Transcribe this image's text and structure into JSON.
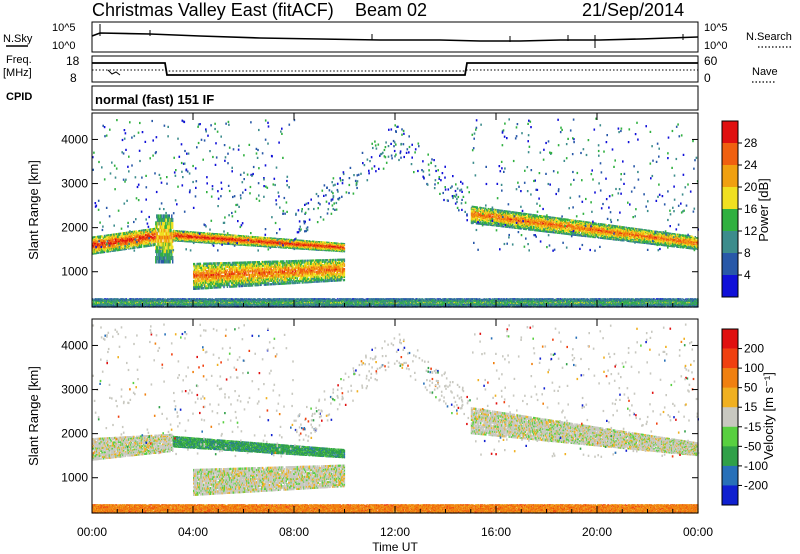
{
  "header": {
    "title": "Christmas Valley East (fitACF)",
    "beam": "Beam 02",
    "date": "21/Sep/2014"
  },
  "top_panels": {
    "nsky": {
      "label": "N.Sky",
      "ticks": [
        "10^5",
        "10^0"
      ],
      "right_label": "N.Search"
    },
    "freq": {
      "label_line1": "Freq.",
      "label_line2": "[MHz]",
      "ticks": [
        "18",
        "8"
      ],
      "right_ticks": [
        "60",
        "0"
      ],
      "right_label": "Nave"
    },
    "cpid": {
      "label": "CPID",
      "mode": "normal (fast) 151 IF"
    }
  },
  "chart_data": [
    {
      "type": "heatmap",
      "panel": "power",
      "ylabel": "Slant Range [km]",
      "yticks": [
        1000,
        2000,
        3000,
        4000
      ],
      "ylim": [
        200,
        4600
      ],
      "xlim": [
        0,
        24
      ],
      "colorbar": {
        "label": "Power [dB]",
        "ticks": [
          "4",
          "8",
          "12",
          "16",
          "20",
          "24",
          "28"
        ],
        "colors": [
          "#1010d8",
          "#2858a8",
          "#3c8c8c",
          "#30b040",
          "#f0e020",
          "#f0a010",
          "#f06010",
          "#e01010"
        ]
      },
      "bands": [
        {
          "t": [
            0.0,
            2.5
          ],
          "r0": [
            1400,
            1600
          ],
          "r1": [
            1800,
            2000
          ],
          "level": 7
        },
        {
          "t": [
            2.5,
            3.2
          ],
          "r0": [
            1200,
            1200
          ],
          "r1": [
            2300,
            2300
          ],
          "level": 5
        },
        {
          "t": [
            3.2,
            10.0
          ],
          "r0": [
            1700,
            1450
          ],
          "r1": [
            1950,
            1650
          ],
          "level": 7
        },
        {
          "t": [
            4.0,
            10.0
          ],
          "r0": [
            600,
            800
          ],
          "r1": [
            1200,
            1300
          ],
          "level": 6
        },
        {
          "t": [
            15.0,
            24.0
          ],
          "r0": [
            2100,
            1500
          ],
          "r1": [
            2500,
            1800
          ],
          "level": 6
        },
        {
          "t": [
            0.0,
            24.0
          ],
          "r0": [
            200,
            200
          ],
          "r1": [
            400,
            400
          ],
          "level": 3
        }
      ]
    },
    {
      "type": "heatmap",
      "panel": "velocity",
      "xlabel": "Time UT",
      "ylabel": "Slant Range [km]",
      "yticks": [
        1000,
        2000,
        3000,
        4000
      ],
      "ylim": [
        200,
        4600
      ],
      "xlim": [
        0,
        24
      ],
      "xticks": [
        "00:00",
        "04:00",
        "08:00",
        "12:00",
        "16:00",
        "20:00",
        "00:00"
      ],
      "colorbar": {
        "label": "Velocity [m s⁻¹]",
        "ticks": [
          "200",
          "100",
          "50",
          "15",
          "-15",
          "-50",
          "-100",
          "-200"
        ],
        "colors": [
          "#1020d0",
          "#2870b8",
          "#30a048",
          "#58d040",
          "#c8c8c0",
          "#f0b020",
          "#f08010",
          "#f04010",
          "#e01010"
        ]
      },
      "bands": [
        {
          "t": [
            0.0,
            3.2
          ],
          "r0": [
            1400,
            1600
          ],
          "r1": [
            1900,
            2000
          ],
          "level": 4
        },
        {
          "t": [
            3.2,
            10.0
          ],
          "r0": [
            1700,
            1450
          ],
          "r1": [
            1950,
            1650
          ],
          "level": 2
        },
        {
          "t": [
            4.0,
            10.0
          ],
          "r0": [
            600,
            800
          ],
          "r1": [
            1200,
            1300
          ],
          "level": 4
        },
        {
          "t": [
            15.0,
            24.0
          ],
          "r0": [
            2000,
            1500
          ],
          "r1": [
            2600,
            1800
          ],
          "level": 4
        },
        {
          "t": [
            0.0,
            24.0
          ],
          "r0": [
            200,
            200
          ],
          "r1": [
            400,
            400
          ],
          "level": 6
        }
      ]
    }
  ]
}
